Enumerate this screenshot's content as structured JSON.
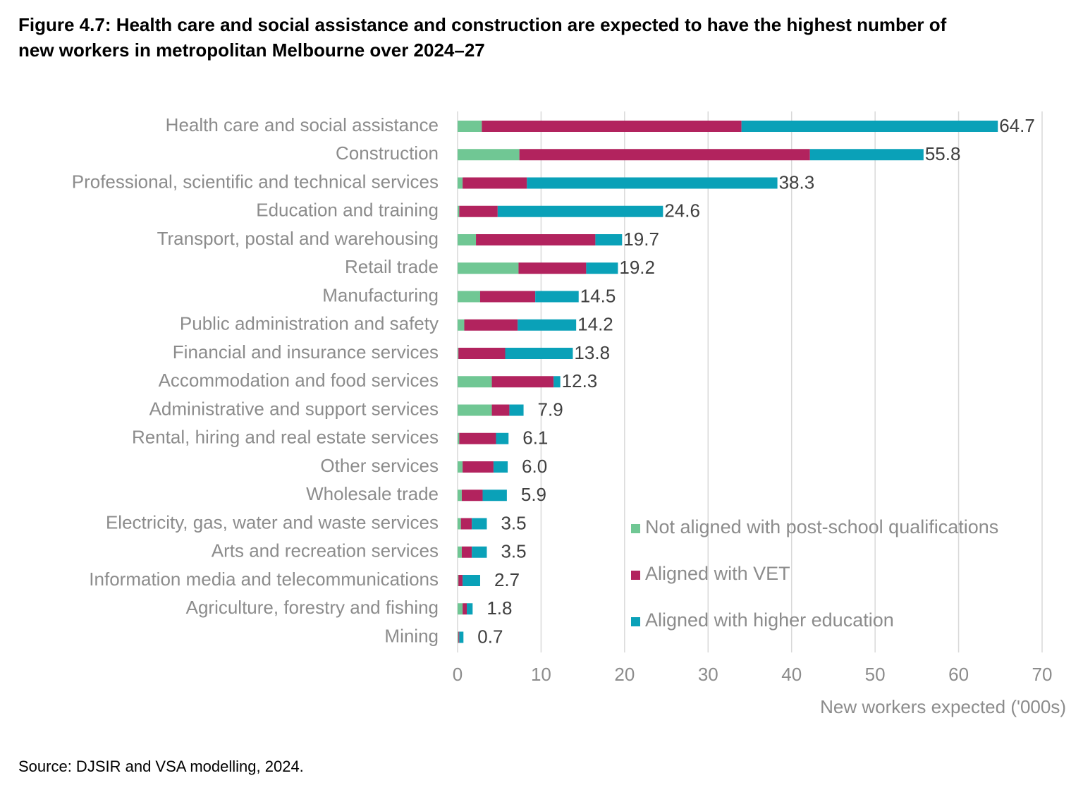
{
  "chart_data": {
    "type": "stacked-bar-horizontal",
    "title": "Figure 4.7: Health care and social assistance and construction are expected to have the highest number of",
    "title_line2": "new workers in metropolitan Melbourne over 2024–27",
    "source": "Source:  DJSIR and VSA modelling, 2024.",
    "x_label": "New workers expected ('000s)",
    "categories": [
      "Health care and social assistance",
      "Construction",
      "Professional, scientific and technical services",
      "Education and training",
      "Transport, postal and warehousing",
      "Retail trade",
      "Manufacturing",
      "Public administration and safety",
      "Financial and insurance services",
      "Accommodation and food services",
      "Administrative and support services",
      "Rental, hiring and real estate services",
      "Other services",
      "Wholesale trade",
      "Electricity, gas, water and waste services",
      "Arts and recreation services",
      "Information media and telecommunications",
      "Agriculture, forestry and fishing",
      "Mining"
    ],
    "series": [
      {
        "name": "Not aligned with post-school qualifications",
        "color": "#70c794",
        "values": [
          2.9,
          7.4,
          0.6,
          0.2,
          2.2,
          7.3,
          2.7,
          0.8,
          0.1,
          4.1,
          4.1,
          0.2,
          0.6,
          0.5,
          0.4,
          0.5,
          0.1,
          0.6,
          0.1
        ]
      },
      {
        "name": "Aligned with VET",
        "color": "#b2235e",
        "values": [
          31.1,
          34.8,
          7.7,
          4.6,
          14.3,
          8.1,
          6.6,
          6.4,
          5.6,
          7.4,
          2.1,
          4.4,
          3.7,
          2.5,
          1.3,
          1.2,
          0.5,
          0.5,
          0.1
        ]
      },
      {
        "name": "Aligned with higher education",
        "color": "#0aa1b8",
        "values": [
          30.7,
          13.6,
          30.0,
          19.8,
          3.2,
          3.8,
          5.2,
          7.0,
          8.1,
          0.8,
          1.7,
          1.5,
          1.7,
          2.9,
          1.8,
          1.8,
          2.1,
          0.7,
          0.5
        ]
      }
    ],
    "totals": [
      64.7,
      55.8,
      38.3,
      24.6,
      19.7,
      19.2,
      14.5,
      14.2,
      13.8,
      12.3,
      7.9,
      6.1,
      6.0,
      5.9,
      3.5,
      3.5,
      2.7,
      1.8,
      0.7
    ],
    "total_labels": [
      "64.7",
      "55.8",
      "38.3",
      "24.6",
      "19.7",
      "19.2",
      "14.5",
      "14.2",
      "13.8",
      "12.3",
      "7.9",
      "6.1",
      "6.0",
      "5.9",
      "3.5",
      "3.5",
      "2.7",
      "1.8",
      "0.7"
    ],
    "xlim": [
      0,
      70
    ],
    "xticks": [
      0,
      10,
      20,
      30,
      40,
      50,
      60,
      70
    ],
    "grid": true
  }
}
